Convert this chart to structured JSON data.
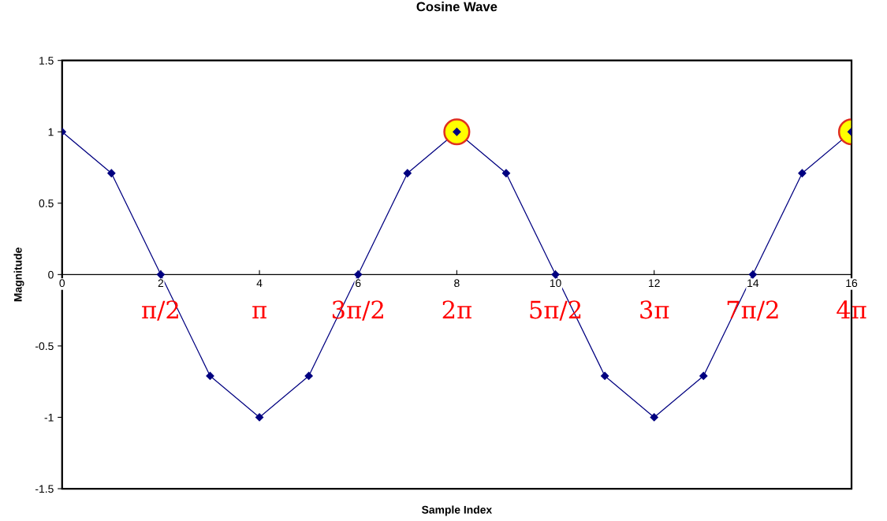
{
  "chart_data": {
    "type": "line",
    "title": "Cosine Wave",
    "xlabel": "Sample Index",
    "ylabel": "Magnitude",
    "x": [
      0,
      1,
      2,
      3,
      4,
      5,
      6,
      7,
      8,
      9,
      10,
      11,
      12,
      13,
      14,
      15,
      16
    ],
    "series": [
      {
        "color": "#000080",
        "values": [
          1,
          0.71,
          0,
          -0.71,
          -1,
          -0.71,
          0,
          0.71,
          1,
          0.71,
          0,
          -0.71,
          -1,
          -0.71,
          0,
          0.71,
          1
        ]
      },
      {
        "type": "scatter",
        "color": "#ffff00",
        "marker": "circle",
        "x": [
          8,
          16
        ],
        "values": [
          1,
          1
        ]
      }
    ],
    "marker": "diamond",
    "xlim": [
      0,
      16
    ],
    "xticks": [
      0,
      2,
      4,
      6,
      8,
      10,
      12,
      14,
      16
    ],
    "ylim": [
      -1.5,
      1.5
    ],
    "yticks": [
      -1.5,
      -1,
      -0.5,
      0,
      0.5,
      1,
      1.5
    ],
    "grid": false,
    "legend": false,
    "annotations": [
      "π/2",
      "π",
      "3π/2",
      "2π",
      "5π/2",
      "3π",
      "7π/2",
      "4π"
    ]
  }
}
